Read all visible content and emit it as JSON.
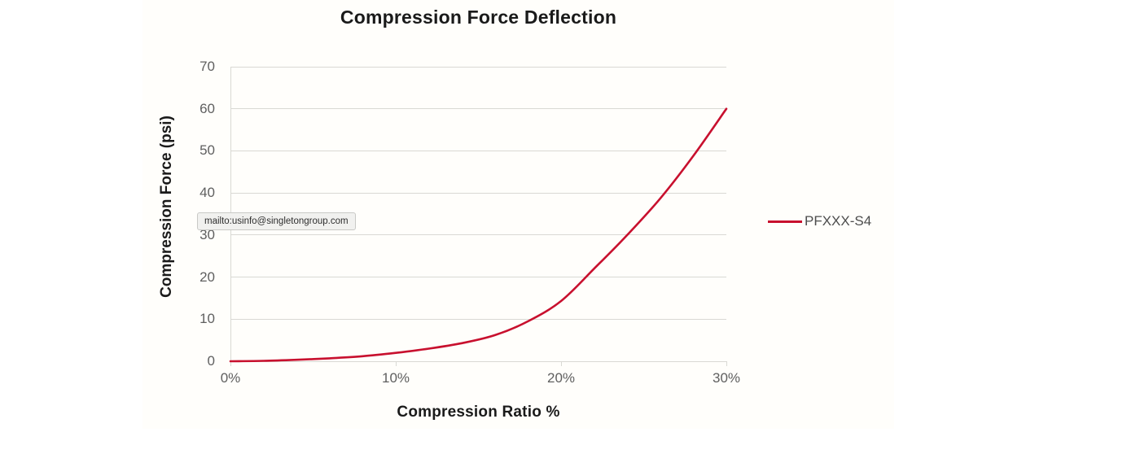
{
  "colors": {
    "series_red": "#c8102e",
    "grid": "#d9d9d4",
    "tick_text": "#5f5f5f",
    "title_text": "#1a1a1a",
    "legend_text": "#4d4d4d",
    "chart_background": "#fffefb"
  },
  "tooltip": {
    "text": "mailto:usinfo@singletongroup.com"
  },
  "chart_data": {
    "type": "line",
    "title": "Compression Force Deflection",
    "xlabel": "Compression Ratio %",
    "ylabel": "Compression Force (psi)",
    "xlim": [
      0,
      30
    ],
    "ylim": [
      0,
      70
    ],
    "xticks": [
      0,
      10,
      20,
      30
    ],
    "xtick_labels": [
      "0%",
      "10%",
      "20%",
      "30%"
    ],
    "yticks": [
      0,
      10,
      20,
      30,
      40,
      50,
      60,
      70
    ],
    "ytick_labels": [
      "0",
      "10",
      "20",
      "30",
      "40",
      "50",
      "60",
      "70"
    ],
    "grid": "horizontal",
    "legend_position": "right",
    "series": [
      {
        "name": "PFXXX-S4",
        "color": "#c8102e",
        "points": [
          [
            0,
            0
          ],
          [
            2,
            0.1
          ],
          [
            4,
            0.35
          ],
          [
            6,
            0.7
          ],
          [
            8,
            1.2
          ],
          [
            10,
            2
          ],
          [
            12,
            3
          ],
          [
            14,
            4.3
          ],
          [
            16,
            6.2
          ],
          [
            18,
            9.5
          ],
          [
            20,
            14.3
          ],
          [
            22,
            22
          ],
          [
            24,
            30
          ],
          [
            26,
            38.7
          ],
          [
            28,
            48.8
          ],
          [
            30,
            60
          ]
        ]
      }
    ]
  }
}
